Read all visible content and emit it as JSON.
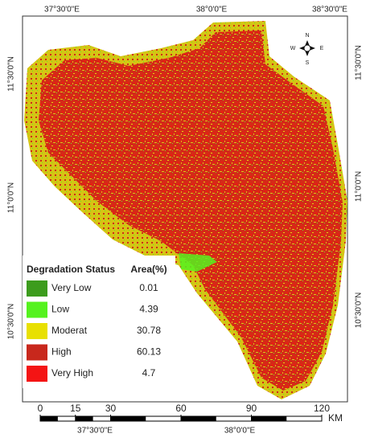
{
  "map": {
    "top_labels": [
      "37°30'0\"E",
      "38°0'0\"E",
      "38°30'0\"E"
    ],
    "bottom_labels": [
      "37°30'0\"E",
      "38°0'0\"E"
    ],
    "left_labels": [
      "11°30'0\"N",
      "11°0'0\"N",
      "10°30'0\"N"
    ],
    "right_labels": [
      "11°30'0\"N",
      "11°0'0\"N",
      "10°30'0\"N"
    ],
    "compass": {
      "n": "N",
      "s": "S",
      "e": "E",
      "w": "W"
    },
    "legend": {
      "header": [
        "Degradation Status",
        "Area(%)"
      ],
      "rows": [
        {
          "label": "Very Low",
          "color": "#3c9c1c",
          "area": 0.01
        },
        {
          "label": "Low",
          "color": "#55f21e",
          "area": 4.39
        },
        {
          "label": "Moderat",
          "color": "#e8e000",
          "area": 30.78
        },
        {
          "label": "High",
          "color": "#c8281c",
          "area": 60.13
        },
        {
          "label": "Very High",
          "color": "#f41414",
          "area": 4.7
        }
      ]
    },
    "scale": {
      "ticks": [
        0,
        15,
        30,
        60,
        90,
        120
      ],
      "unit": "KM"
    }
  }
}
